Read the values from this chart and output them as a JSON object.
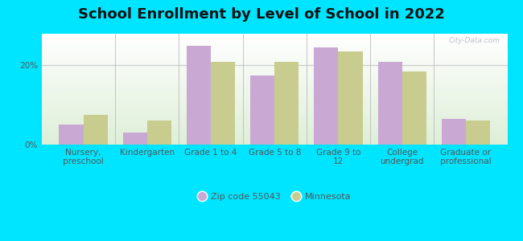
{
  "title": "School Enrollment by Level of School in 2022",
  "categories": [
    "Nursery,\npreschool",
    "Kindergarten",
    "Grade 1 to 4",
    "Grade 5 to 8",
    "Grade 9 to\n12",
    "College\nundergrad",
    "Graduate or\nprofessional"
  ],
  "zip_values": [
    5.0,
    3.0,
    25.0,
    17.5,
    24.5,
    21.0,
    6.5
  ],
  "mn_values": [
    7.5,
    6.0,
    21.0,
    21.0,
    23.5,
    18.5,
    6.0
  ],
  "zip_color": "#c9a8d4",
  "mn_color": "#c8cc8e",
  "background_color": "#00e5ff",
  "grad_color_top": "#ffffff",
  "grad_color_bottom": "#deefd8",
  "ylim": [
    0,
    28
  ],
  "yticks": [
    0,
    20
  ],
  "ytick_labels": [
    "0%",
    "20%"
  ],
  "grid_color": "#cccccc",
  "legend_zip_label": "Zip code 55043",
  "legend_mn_label": "Minnesota",
  "title_fontsize": 13,
  "axis_fontsize": 7.5,
  "bar_width": 0.38,
  "watermark": "City-Data.com"
}
